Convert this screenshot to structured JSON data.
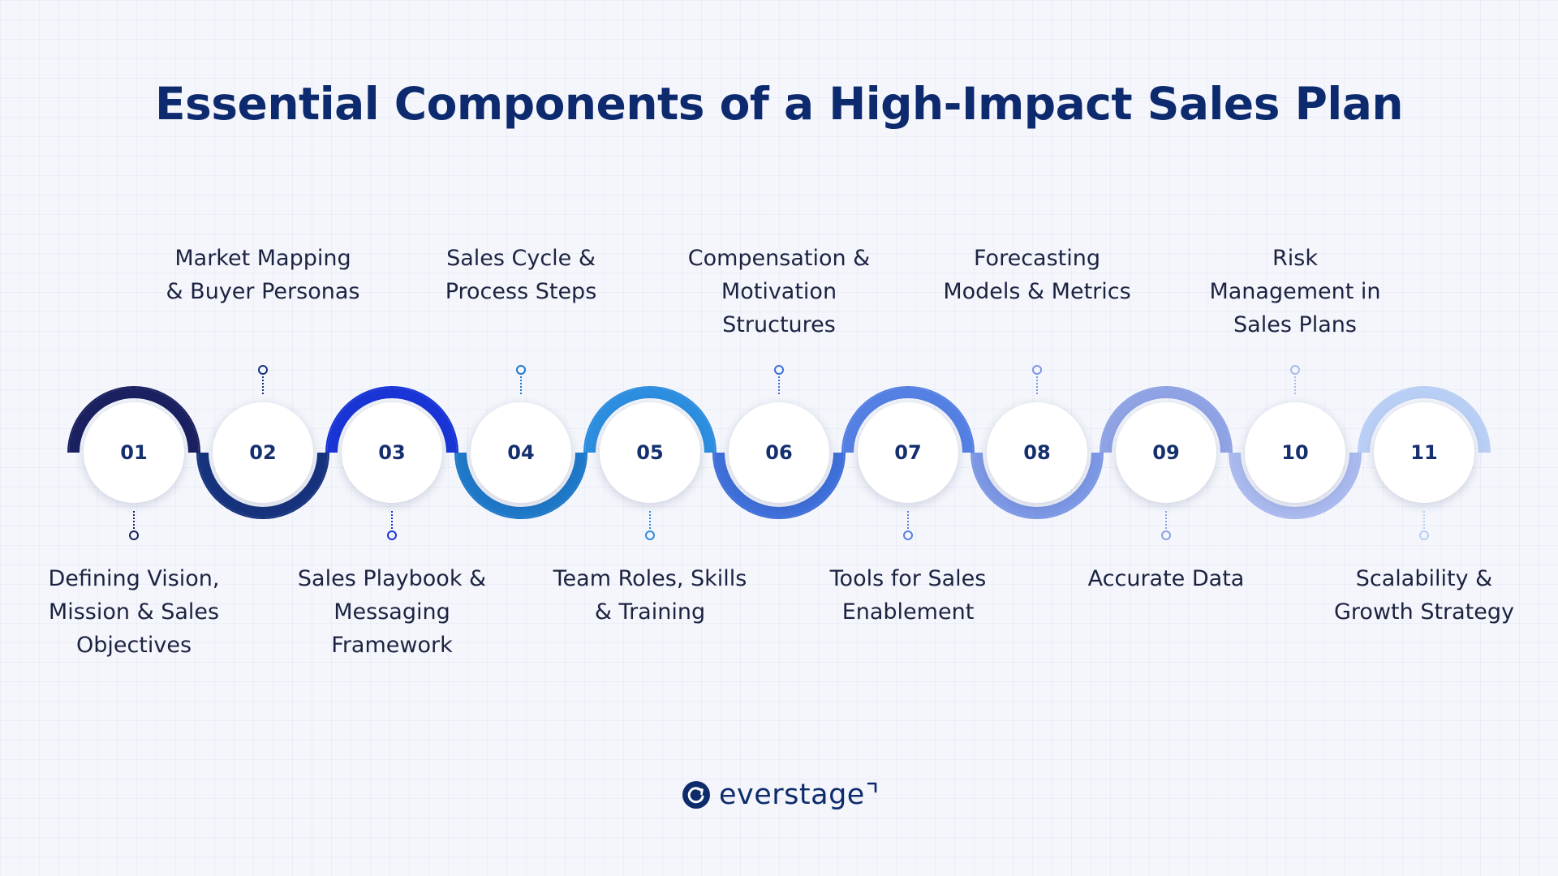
{
  "title": "Essential Components of a High-Impact Sales Plan",
  "steps": [
    {
      "number": "01",
      "label": "Defining Vision, Mission & Sales Objectives",
      "position": "below",
      "color": "#1b2160"
    },
    {
      "number": "02",
      "label": "Market Mapping & Buyer Personas",
      "position": "above",
      "color": "#17337d"
    },
    {
      "number": "03",
      "label": "Sales Playbook & Messaging Framework",
      "position": "below",
      "color": "#1a35d6"
    },
    {
      "number": "04",
      "label": "Sales Cycle & Process Steps",
      "position": "above",
      "color": "#1f78c8"
    },
    {
      "number": "05",
      "label": "Team Roles, Skills & Training",
      "position": "below",
      "color": "#2d8ddf"
    },
    {
      "number": "06",
      "label": "Compensation & Motivation Structures",
      "position": "above",
      "color": "#3f6fd8"
    },
    {
      "number": "07",
      "label": "Tools for Sales Enablement",
      "position": "below",
      "color": "#5580e3"
    },
    {
      "number": "08",
      "label": "Forecasting Models & Metrics",
      "position": "above",
      "color": "#7c97e4"
    },
    {
      "number": "09",
      "label": "Accurate Data",
      "position": "below",
      "color": "#8ea2e4"
    },
    {
      "number": "10",
      "label": "Risk Management in Sales Plans",
      "position": "above",
      "color": "#a9b9ee"
    },
    {
      "number": "11",
      "label": "Scalability & Growth Strategy",
      "position": "below",
      "color": "#b9cef4"
    }
  ],
  "brand": {
    "name": "everstage",
    "color": "#0e2b6b",
    "icon": "everstage-logo-icon"
  }
}
